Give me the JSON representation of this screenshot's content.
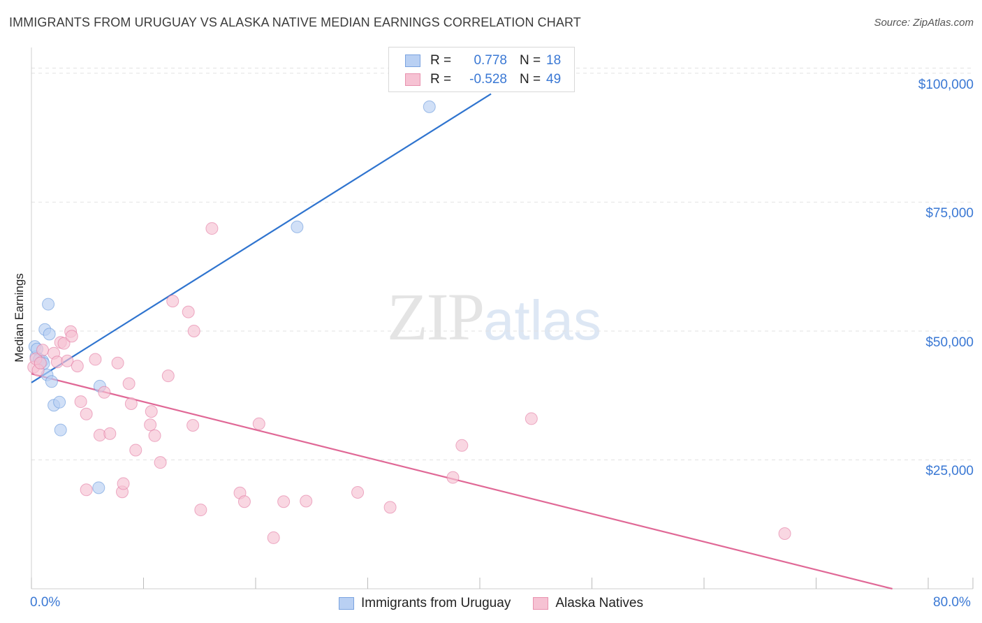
{
  "title": "IMMIGRANTS FROM URUGUAY VS ALASKA NATIVE MEDIAN EARNINGS CORRELATION CHART",
  "source": "Source: ZipAtlas.com",
  "watermark": {
    "zip": "ZIP",
    "atlas": "atlas"
  },
  "legend": {
    "rows": [
      {
        "r_label": "R =",
        "r_value": "0.778",
        "n_label": "N =",
        "n_value": "18"
      },
      {
        "r_label": "R =",
        "r_value": "-0.528",
        "n_label": "N =",
        "n_value": "49"
      }
    ]
  },
  "chart_data": {
    "type": "scatter",
    "title": "IMMIGRANTS FROM URUGUAY VS ALASKA NATIVE MEDIAN EARNINGS CORRELATION CHART",
    "xlabel": "",
    "ylabel": "Median Earnings",
    "xlim": [
      0,
      80
    ],
    "ylim": [
      0,
      105000
    ],
    "x_tick_labels": [
      "0.0%",
      "80.0%"
    ],
    "y_ticks": [
      25000,
      50000,
      75000,
      100000
    ],
    "y_tick_labels": [
      "$25,000",
      "$50,000",
      "$75,000",
      "$100,000"
    ],
    "grid": true,
    "legend_position": "top-center",
    "series": [
      {
        "name": "Immigrants from Uruguay",
        "color": "#5b8fd9",
        "fill": "#b9d0f3",
        "trend": {
          "x": [
            0,
            41
          ],
          "y": [
            40000,
            96000
          ]
        },
        "points": [
          [
            0.3,
            47000
          ],
          [
            0.4,
            45000
          ],
          [
            0.5,
            46500
          ],
          [
            0.7,
            44500
          ],
          [
            1.0,
            44200
          ],
          [
            1.1,
            43700
          ],
          [
            1.2,
            50300
          ],
          [
            1.4,
            41500
          ],
          [
            1.5,
            55200
          ],
          [
            1.6,
            49400
          ],
          [
            1.8,
            40200
          ],
          [
            2.0,
            35600
          ],
          [
            2.5,
            36200
          ],
          [
            2.6,
            30800
          ],
          [
            6.1,
            39300
          ],
          [
            6.0,
            19600
          ],
          [
            23.7,
            70200
          ],
          [
            35.5,
            93500
          ]
        ]
      },
      {
        "name": "Alaska Natives",
        "color": "#e0709a",
        "fill": "#f6c2d3",
        "trend": {
          "x": [
            0,
            76.8
          ],
          "y": [
            41700,
            0
          ]
        },
        "points": [
          [
            0.2,
            43000
          ],
          [
            0.4,
            44600
          ],
          [
            0.6,
            42400
          ],
          [
            0.8,
            43800
          ],
          [
            1.0,
            46300
          ],
          [
            2.0,
            45700
          ],
          [
            2.3,
            44000
          ],
          [
            2.6,
            47800
          ],
          [
            2.9,
            47600
          ],
          [
            3.2,
            44200
          ],
          [
            3.5,
            49900
          ],
          [
            3.6,
            49000
          ],
          [
            4.1,
            43200
          ],
          [
            4.4,
            36300
          ],
          [
            4.9,
            33900
          ],
          [
            4.9,
            19200
          ],
          [
            5.7,
            44500
          ],
          [
            6.1,
            29800
          ],
          [
            6.5,
            38100
          ],
          [
            7.0,
            30100
          ],
          [
            7.7,
            43800
          ],
          [
            8.1,
            18800
          ],
          [
            8.2,
            20400
          ],
          [
            8.7,
            39800
          ],
          [
            8.9,
            35900
          ],
          [
            9.3,
            26900
          ],
          [
            10.6,
            31800
          ],
          [
            10.7,
            34400
          ],
          [
            11.0,
            29700
          ],
          [
            11.5,
            24500
          ],
          [
            12.2,
            41300
          ],
          [
            12.6,
            55800
          ],
          [
            14.0,
            53700
          ],
          [
            14.4,
            31700
          ],
          [
            14.5,
            50000
          ],
          [
            15.1,
            15300
          ],
          [
            16.1,
            69900
          ],
          [
            18.6,
            18600
          ],
          [
            19.0,
            16900
          ],
          [
            20.3,
            32000
          ],
          [
            21.6,
            9900
          ],
          [
            22.5,
            16900
          ],
          [
            24.5,
            17000
          ],
          [
            29.1,
            18700
          ],
          [
            32.0,
            15800
          ],
          [
            37.6,
            21600
          ],
          [
            38.4,
            27800
          ],
          [
            44.6,
            33000
          ],
          [
            67.2,
            10700
          ]
        ]
      }
    ]
  }
}
